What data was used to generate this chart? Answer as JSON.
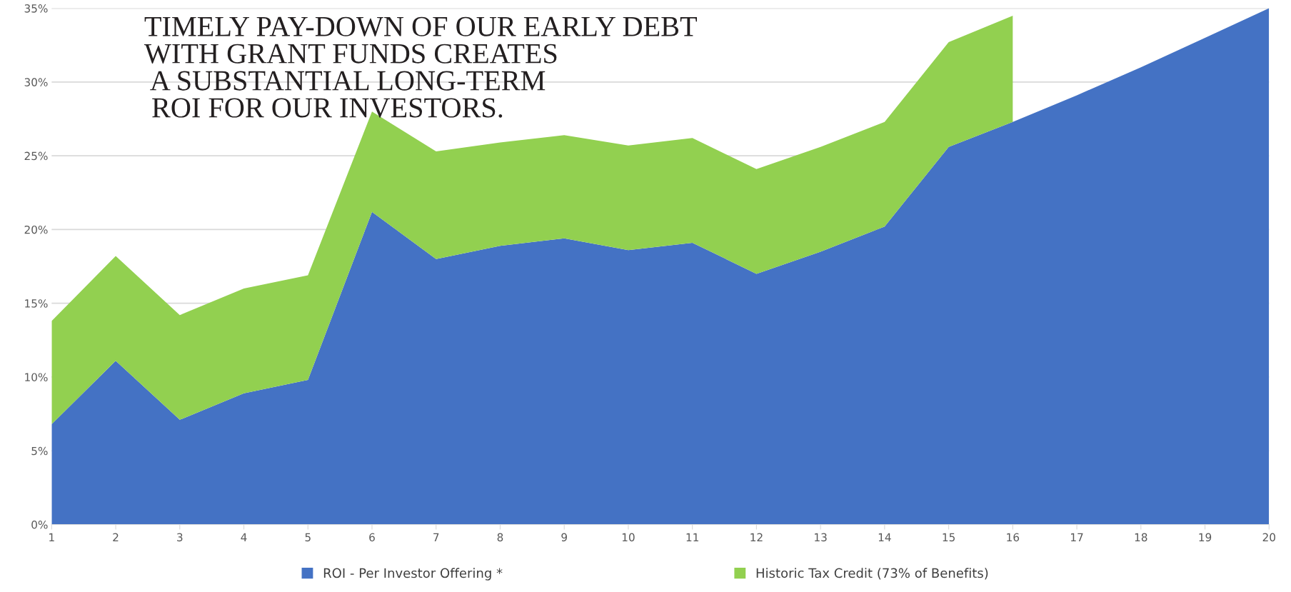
{
  "chart_data": {
    "type": "area",
    "stacked": true,
    "title": "TIMELY PAY-DOWN OF OUR EARLY DEBT\nWITH GRANT FUNDS CREATES\n A SUBSTANTIAL LONG-TERM\n ROI FOR OUR INVESTORS.",
    "categories": [
      "1",
      "2",
      "3",
      "4",
      "5",
      "6",
      "7",
      "8",
      "9",
      "10",
      "11",
      "12",
      "13",
      "14",
      "15",
      "16",
      "17",
      "18",
      "19",
      "20"
    ],
    "series": [
      {
        "name": "ROI - Per Investor Offering *",
        "color": "#4472c4",
        "values": [
          6.8,
          11.1,
          7.1,
          8.9,
          9.8,
          21.2,
          18.0,
          18.9,
          19.4,
          18.6,
          19.1,
          17.0,
          18.5,
          20.2,
          25.6,
          27.3,
          29.1,
          31.0,
          33.0,
          35.0
        ]
      },
      {
        "name": "Historic Tax Credit (73% of Benefits)",
        "color": "#92d050",
        "values": [
          7.0,
          7.1,
          7.1,
          7.1,
          7.1,
          6.8,
          7.3,
          7.0,
          7.0,
          7.1,
          7.1,
          7.1,
          7.1,
          7.1,
          7.1,
          7.2,
          null,
          null,
          null,
          null
        ]
      }
    ],
    "ylim": [
      0,
      35
    ],
    "yticks": [
      {
        "value": 0,
        "label": "0%"
      },
      {
        "value": 5,
        "label": "5%"
      },
      {
        "value": 10,
        "label": "10%"
      },
      {
        "value": 15,
        "label": "15%"
      },
      {
        "value": 20,
        "label": "20%"
      },
      {
        "value": 25,
        "label": "25%"
      },
      {
        "value": 30,
        "label": "30%"
      },
      {
        "value": 35,
        "label": "35%"
      }
    ],
    "grid": "y",
    "legend": "bottom"
  }
}
